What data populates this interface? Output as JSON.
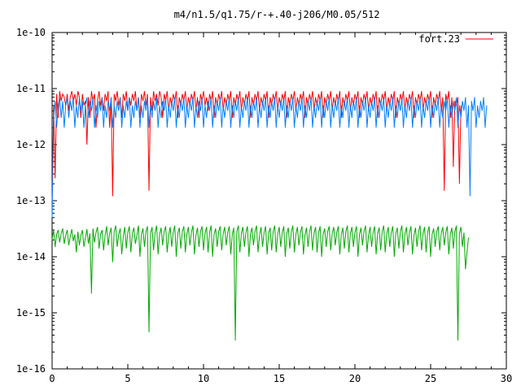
{
  "chart_data": {
    "type": "line",
    "title": "m4/n1.5/q1.75/r-+.40-j206/M0.05/512",
    "xlabel": "",
    "ylabel": "",
    "xlim": [
      0,
      30
    ],
    "ylim": [
      1e-16,
      1e-10
    ],
    "y_scale": "log",
    "grid": false,
    "legend_position": "top-right",
    "x_ticks": [
      0,
      5,
      10,
      15,
      20,
      25,
      30
    ],
    "x_tick_labels": [
      "0",
      "5",
      "10",
      "15",
      "20",
      "25",
      "30"
    ],
    "y_ticks": [
      1e-16,
      1e-15,
      1e-14,
      1e-13,
      1e-12,
      1e-11,
      1e-10
    ],
    "y_tick_labels": [
      "1e-16",
      "1e-15",
      "1e-14",
      "1e-13",
      "1e-12",
      "1e-11",
      "1e-10"
    ],
    "series": [
      {
        "name": "fort.23",
        "color": "#ff0000",
        "x_start": 0.0,
        "x_step": 0.1,
        "values": [
          1e-13,
          5e-12,
          2.5e-13,
          8e-12,
          3e-12,
          9e-12,
          6e-12,
          8e-12,
          7e-12,
          5e-12,
          8e-12,
          4e-12,
          7e-12,
          9e-12,
          6e-12,
          8e-12,
          5e-12,
          9e-12,
          7e-12,
          3e-12,
          8e-12,
          5e-12,
          6e-12,
          1e-12,
          7e-12,
          3e-12,
          9e-12,
          6e-12,
          8e-12,
          2e-12,
          6e-12,
          9e-12,
          5e-12,
          7e-12,
          4e-12,
          8e-12,
          6e-12,
          9e-12,
          2e-12,
          7e-12,
          1.2e-13,
          8e-12,
          6e-12,
          9e-12,
          5e-12,
          7e-12,
          3e-12,
          8e-12,
          6e-12,
          9e-12,
          4e-12,
          7e-12,
          5e-12,
          8e-12,
          6e-12,
          9e-12,
          4e-12,
          7e-12,
          3e-12,
          8e-12,
          6e-12,
          9e-12,
          5e-12,
          8e-12,
          1.5e-13,
          7e-12,
          4e-12,
          9e-12,
          6e-12,
          8e-12,
          5e-12,
          9e-12,
          7e-12,
          3e-12,
          8e-12,
          6e-12,
          9e-12,
          4e-12,
          7e-12,
          5e-12,
          8e-12,
          6e-12,
          9e-12,
          3e-12,
          7e-12,
          5e-12,
          8e-12,
          6e-12,
          9e-12,
          4e-12,
          7e-12,
          5e-12,
          8e-12,
          6e-12,
          9e-12,
          4e-12,
          7e-12,
          3e-12,
          8e-12,
          6e-12,
          9e-12,
          5e-12,
          7e-12,
          4e-12,
          8e-12,
          6e-12,
          9e-12,
          3e-12,
          7e-12,
          5e-12,
          8e-12,
          6e-12,
          9e-12,
          4e-12,
          7e-12,
          5e-12,
          8e-12,
          6e-12,
          9e-12,
          3e-12,
          7e-12,
          5e-12,
          8e-12,
          6e-12,
          9e-12,
          4e-12,
          7e-12,
          5e-12,
          8e-12,
          6e-12,
          9e-12,
          3e-12,
          7e-12,
          5e-12,
          8e-12,
          6e-12,
          9e-12,
          4e-12,
          7e-12,
          5e-12,
          8e-12,
          6e-12,
          9e-12,
          3e-12,
          7e-12,
          5e-12,
          8e-12,
          6e-12,
          9e-12,
          4e-12,
          7e-12,
          5e-12,
          8e-12,
          6e-12,
          9e-12,
          3e-12,
          7e-12,
          5e-12,
          8e-12,
          6e-12,
          9e-12,
          4e-12,
          7e-12,
          5e-12,
          8e-12,
          6e-12,
          9e-12,
          3e-12,
          7e-12,
          5e-12,
          8e-12,
          6e-12,
          9e-12,
          4e-12,
          7e-12,
          5e-12,
          8e-12,
          6e-12,
          9e-12,
          3e-12,
          7e-12,
          5e-12,
          8e-12,
          6e-12,
          9e-12,
          4e-12,
          7e-12,
          5e-12,
          8e-12,
          6e-12,
          9e-12,
          3e-12,
          7e-12,
          5e-12,
          8e-12,
          6e-12,
          9e-12,
          4e-12,
          7e-12,
          5e-12,
          8e-12,
          6e-12,
          9e-12,
          3e-12,
          7e-12,
          5e-12,
          8e-12,
          6e-12,
          9e-12,
          4e-12,
          7e-12,
          5e-12,
          8e-12,
          6e-12,
          9e-12,
          3e-12,
          7e-12,
          5e-12,
          8e-12,
          6e-12,
          9e-12,
          4e-12,
          7e-12,
          5e-12,
          8e-12,
          6e-12,
          9e-12,
          3e-12,
          7e-12,
          5e-12,
          8e-12,
          6e-12,
          9e-12,
          4e-12,
          7e-12,
          5e-12,
          8e-12,
          6e-12,
          9e-12,
          3e-12,
          7e-12,
          5e-12,
          8e-12,
          6e-12,
          9e-12,
          4e-12,
          7e-12,
          5e-12,
          8e-12,
          6e-12,
          9e-12,
          3e-12,
          7e-12,
          5e-12,
          8e-12,
          6e-12,
          9e-12,
          4e-12,
          7e-12,
          1.5e-13,
          8e-12,
          6e-12,
          9e-12,
          3e-12,
          7e-12,
          4e-13,
          6e-12,
          5e-12,
          7e-12,
          2e-13,
          5e-12
        ]
      },
      {
        "name": "",
        "color": "#0080ff",
        "x_start": 0.0,
        "x_step": 0.1,
        "values": [
          5e-14,
          3e-12,
          6e-12,
          2e-12,
          5e-12,
          7e-12,
          3e-12,
          6e-12,
          2e-12,
          5e-12,
          7e-12,
          3e-12,
          6e-12,
          4e-12,
          7e-12,
          2e-12,
          5e-12,
          3e-12,
          7e-12,
          4e-12,
          6e-12,
          2e-12,
          5e-12,
          7e-12,
          3e-12,
          6e-12,
          4e-12,
          7e-12,
          2e-12,
          5e-12,
          3e-12,
          6e-12,
          4e-12,
          7e-12,
          2e-12,
          5e-12,
          3e-12,
          6e-12,
          4e-12,
          7e-12,
          2e-12,
          5e-12,
          3e-12,
          6e-12,
          4e-12,
          7e-12,
          2e-12,
          5e-12,
          3e-12,
          6e-12,
          4e-12,
          7e-12,
          2e-12,
          5e-12,
          3e-12,
          6e-12,
          4e-12,
          7e-12,
          2e-12,
          5e-12,
          3e-12,
          6e-12,
          4e-12,
          7e-12,
          2e-12,
          5e-12,
          3e-12,
          6e-12,
          4e-12,
          7e-12,
          2e-12,
          5e-12,
          3e-12,
          6e-12,
          4e-12,
          7e-12,
          2e-12,
          5e-12,
          3e-12,
          6e-12,
          4e-12,
          7e-12,
          2e-12,
          5e-12,
          3e-12,
          6e-12,
          4e-12,
          7e-12,
          2e-12,
          5e-12,
          3e-12,
          6e-12,
          4e-12,
          7e-12,
          2e-12,
          5e-12,
          3e-12,
          6e-12,
          4e-12,
          7e-12,
          2e-12,
          5e-12,
          3e-12,
          6e-12,
          4e-12,
          7e-12,
          2e-12,
          5e-12,
          3e-12,
          6e-12,
          4e-12,
          7e-12,
          2e-12,
          5e-12,
          3e-12,
          6e-12,
          4e-12,
          7e-12,
          2e-12,
          5e-12,
          3e-12,
          6e-12,
          4e-12,
          7e-12,
          2e-12,
          5e-12,
          3e-12,
          6e-12,
          4e-12,
          7e-12,
          2e-12,
          5e-12,
          3e-12,
          6e-12,
          4e-12,
          7e-12,
          2e-12,
          5e-12,
          3e-12,
          6e-12,
          4e-12,
          7e-12,
          2e-12,
          5e-12,
          3e-12,
          6e-12,
          4e-12,
          7e-12,
          2e-12,
          5e-12,
          3e-12,
          6e-12,
          4e-12,
          7e-12,
          2e-12,
          5e-12,
          3e-12,
          6e-12,
          4e-12,
          7e-12,
          2e-12,
          5e-12,
          3e-12,
          6e-12,
          4e-12,
          7e-12,
          2e-12,
          5e-12,
          3e-12,
          6e-12,
          4e-12,
          7e-12,
          2e-12,
          5e-12,
          3e-12,
          6e-12,
          4e-12,
          7e-12,
          2e-12,
          5e-12,
          3e-12,
          6e-12,
          4e-12,
          7e-12,
          2e-12,
          5e-12,
          3e-12,
          6e-12,
          4e-12,
          7e-12,
          2e-12,
          5e-12,
          3e-12,
          6e-12,
          4e-12,
          7e-12,
          2e-12,
          5e-12,
          3e-12,
          6e-12,
          4e-12,
          7e-12,
          2e-12,
          5e-12,
          3e-12,
          6e-12,
          4e-12,
          7e-12,
          2e-12,
          5e-12,
          3e-12,
          6e-12,
          4e-12,
          7e-12,
          2e-12,
          5e-12,
          3e-12,
          6e-12,
          4e-12,
          7e-12,
          2e-12,
          5e-12,
          3e-12,
          6e-12,
          4e-12,
          7e-12,
          2e-12,
          5e-12,
          3e-12,
          6e-12,
          4e-12,
          7e-12,
          2e-12,
          5e-12,
          3e-12,
          6e-12,
          4e-12,
          7e-12,
          2e-12,
          5e-12,
          3e-12,
          6e-12,
          4e-12,
          7e-12,
          2e-12,
          5e-12,
          3e-12,
          6e-12,
          4e-12,
          7e-12,
          2e-12,
          5e-12,
          3e-12,
          6e-12,
          4e-12,
          7e-12,
          2e-12,
          5e-12,
          3e-12,
          6e-12,
          4e-12,
          7e-12,
          2e-12,
          5e-12,
          3e-12,
          6e-12,
          4e-12,
          7e-12,
          2e-12,
          5e-12,
          3e-12,
          6e-12,
          4e-12,
          7e-12,
          2e-12,
          5e-12,
          1.2e-13,
          6e-12,
          4e-12,
          7e-12,
          2e-12,
          5e-12,
          3e-12,
          6e-12,
          4e-12,
          7e-12,
          2e-12,
          5e-12
        ]
      },
      {
        "name": "",
        "color": "#00aa00",
        "x_start": 0.0,
        "x_step": 0.1,
        "values": [
          2e-14,
          3e-14,
          1.5e-14,
          2.5e-14,
          3e-14,
          1.8e-14,
          2.6e-14,
          3.2e-14,
          1.7e-14,
          2.4e-14,
          3e-14,
          1.6e-14,
          2.3e-14,
          3.1e-14,
          1.9e-14,
          2.5e-14,
          1.2e-14,
          2.8e-14,
          1.6e-14,
          2.4e-14,
          3e-14,
          1.5e-14,
          2.2e-14,
          3.1e-14,
          1.7e-14,
          2.6e-14,
          2.2e-15,
          3.2e-14,
          1.8e-14,
          2.7e-14,
          3.4e-14,
          1.4e-14,
          2.5e-14,
          3e-14,
          1.3e-14,
          2.4e-14,
          3.5e-14,
          1.6e-14,
          2.6e-14,
          3.3e-14,
          8e-15,
          2.8e-14,
          3.6e-14,
          1.5e-14,
          2.5e-14,
          3.2e-14,
          1.1e-14,
          2.3e-14,
          3.4e-14,
          1.4e-14,
          2.7e-14,
          3.5e-14,
          1.2e-14,
          2.6e-14,
          3.3e-14,
          1.7e-14,
          2.4e-14,
          3.6e-14,
          1e-14,
          2.5e-14,
          3.2e-14,
          1.5e-14,
          2.8e-14,
          3.5e-14,
          4.5e-16,
          2.6e-14,
          3.4e-14,
          1.3e-14,
          2.7e-14,
          3.6e-14,
          1.1e-14,
          2.5e-14,
          3.3e-14,
          1.6e-14,
          2.8e-14,
          3.5e-14,
          1.2e-14,
          2.4e-14,
          3.4e-14,
          1.5e-14,
          2.7e-14,
          3.6e-14,
          1e-14,
          2.6e-14,
          3.3e-14,
          1.4e-14,
          2.8e-14,
          3.5e-14,
          1.2e-14,
          2.5e-14,
          3.4e-14,
          1.6e-14,
          2.7e-14,
          3.6e-14,
          1.1e-14,
          2.4e-14,
          3.3e-14,
          1.5e-14,
          2.8e-14,
          3.5e-14,
          1.3e-14,
          2.6e-14,
          3.4e-14,
          1.2e-14,
          2.7e-14,
          3.6e-14,
          1e-14,
          2.5e-14,
          3.2e-14,
          1.5e-14,
          2.8e-14,
          3.5e-14,
          1.3e-14,
          2.6e-14,
          3.4e-14,
          1.6e-14,
          2.7e-14,
          3.5e-14,
          1.1e-14,
          2.5e-14,
          3.3e-14,
          3.2e-16,
          2.8e-14,
          3.6e-14,
          1.2e-14,
          2.6e-14,
          3.4e-14,
          1.5e-14,
          2.7e-14,
          3.5e-14,
          1e-14,
          2.5e-14,
          3.3e-14,
          1.6e-14,
          2.8e-14,
          3.6e-14,
          1.2e-14,
          2.4e-14,
          3.4e-14,
          1.5e-14,
          2.7e-14,
          3.5e-14,
          1.1e-14,
          2.6e-14,
          3.3e-14,
          1.3e-14,
          2.8e-14,
          3.6e-14,
          1.2e-14,
          2.5e-14,
          3.4e-14,
          1.5e-14,
          2.7e-14,
          3.5e-14,
          1e-14,
          2.6e-14,
          3.3e-14,
          1.4e-14,
          2.8e-14,
          3.6e-14,
          1.2e-14,
          2.5e-14,
          3.4e-14,
          1.6e-14,
          2.7e-14,
          3.5e-14,
          1.1e-14,
          2.4e-14,
          3.3e-14,
          1.5e-14,
          2.8e-14,
          3.6e-14,
          1.3e-14,
          2.6e-14,
          3.4e-14,
          1.2e-14,
          2.7e-14,
          3.5e-14,
          1e-14,
          2.5e-14,
          3.2e-14,
          1.5e-14,
          2.8e-14,
          3.5e-14,
          1.3e-14,
          2.6e-14,
          3.4e-14,
          1.6e-14,
          2.7e-14,
          3.5e-14,
          1.1e-14,
          2.5e-14,
          3.3e-14,
          1.4e-14,
          2.8e-14,
          3.6e-14,
          1.2e-14,
          2.6e-14,
          3.4e-14,
          1.5e-14,
          2.7e-14,
          3.5e-14,
          1e-14,
          2.5e-14,
          3.3e-14,
          1.6e-14,
          2.8e-14,
          3.6e-14,
          1.2e-14,
          2.4e-14,
          3.4e-14,
          1.5e-14,
          2.7e-14,
          3.5e-14,
          1.1e-14,
          2.6e-14,
          3.3e-14,
          1.3e-14,
          2.8e-14,
          3.6e-14,
          1.2e-14,
          2.5e-14,
          3.4e-14,
          1.5e-14,
          2.7e-14,
          3.5e-14,
          1e-14,
          2.6e-14,
          3.3e-14,
          1.4e-14,
          2.8e-14,
          3.6e-14,
          1.2e-14,
          2.5e-14,
          3.4e-14,
          1.6e-14,
          2.7e-14,
          3.5e-14,
          1.1e-14,
          2.4e-14,
          3.3e-14,
          1.5e-14,
          2.8e-14,
          3.6e-14,
          1.3e-14,
          2.6e-14,
          3.4e-14,
          1.2e-14,
          2.7e-14,
          3.5e-14,
          1e-14,
          2.5e-14,
          3.2e-14,
          1.5e-14,
          2.8e-14,
          3.5e-14,
          1.3e-14,
          2.6e-14,
          3.4e-14,
          1.6e-14,
          2.7e-14,
          3.5e-14,
          1.1e-14,
          2.5e-14,
          3.3e-14,
          1.4e-14,
          2.8e-14,
          3.6e-14,
          3.2e-16,
          2.6e-14,
          3.4e-14,
          1.5e-14,
          2.7e-14,
          6e-15,
          1.2e-14,
          2.2e-14
        ]
      }
    ]
  }
}
